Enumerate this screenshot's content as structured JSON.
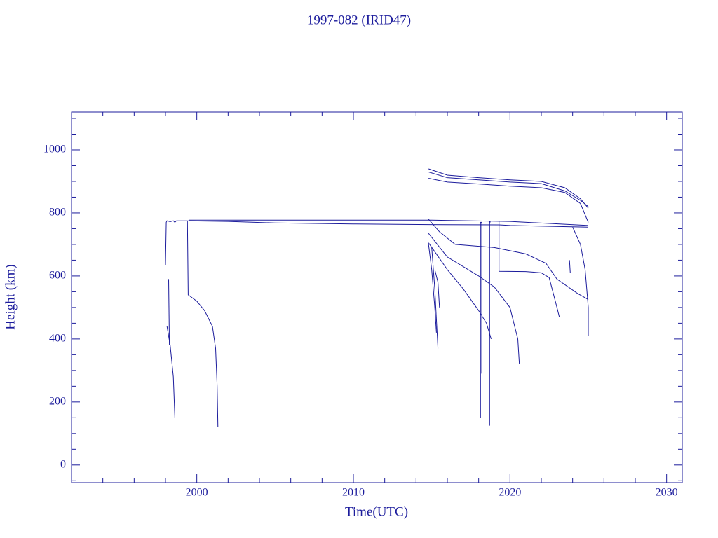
{
  "chart_data": {
    "type": "line",
    "title": "1997-082 (IRID47)",
    "x_label": "Time(UTC)",
    "y_label": "Height (km)",
    "xlim": [
      1992,
      2031
    ],
    "ylim": [
      -56,
      1120
    ],
    "xticks": [
      2000,
      2010,
      2020,
      2030
    ],
    "yticks": [
      0,
      200,
      400,
      600,
      800,
      1000
    ],
    "xminorticks": [
      1994,
      1996,
      1998,
      2002,
      2004,
      2006,
      2008,
      2012,
      2014,
      2016,
      2018,
      2022,
      2024,
      2026,
      2028
    ],
    "yminorticks": [
      -50,
      50,
      100,
      150,
      250,
      300,
      350,
      450,
      500,
      550,
      650,
      700,
      750,
      850,
      900,
      950,
      1050,
      1100
    ],
    "color": "#1c1c9c",
    "series": [
      {
        "x": [
          1998.0,
          1998.05,
          1998.1,
          1998.3,
          1998.5,
          1998.6,
          1998.7,
          1999.0,
          1999.3,
          2002,
          2005,
          2010,
          2014.8,
          2019.3,
          2020,
          2025
        ],
        "values": [
          634,
          770,
          775,
          772,
          775,
          770,
          775,
          775,
          775,
          773,
          768,
          765,
          763,
          762,
          760,
          755
        ]
      },
      {
        "x": [
          1999.5,
          2005,
          2015,
          2020,
          2025
        ],
        "values": [
          777,
          777,
          777,
          773,
          760
        ]
      },
      {
        "x": [
          1999.4,
          1999.45,
          2000,
          2000.5,
          2001,
          2001.2,
          2001.3,
          2001.35
        ],
        "values": [
          775,
          540,
          520,
          490,
          440,
          370,
          250,
          120
        ]
      },
      {
        "x": [
          1998.1,
          1998.3,
          1998.5,
          1998.6
        ],
        "values": [
          440,
          380,
          280,
          150
        ]
      },
      {
        "x": [
          1998.2,
          1998.25
        ],
        "values": [
          590,
          380
        ]
      },
      {
        "x": [
          2018.12,
          2018.12,
          2018.2,
          2018.2
        ],
        "values": [
          150,
          770,
          770,
          290
        ]
      },
      {
        "x": [
          2018.7,
          2018.7,
          2018.75
        ],
        "values": [
          125,
          775,
          770
        ]
      },
      {
        "x": [
          2019.3,
          2019.3,
          2021,
          2022,
          2022.5,
          2023.0,
          2023.15
        ],
        "values": [
          775,
          615,
          614,
          610,
          595,
          500,
          470
        ]
      },
      {
        "x": [
          2014.8,
          2016,
          2018,
          2020,
          2022,
          2023.5,
          2024.5,
          2025
        ],
        "values": [
          940,
          920,
          912,
          905,
          900,
          880,
          845,
          815
        ]
      },
      {
        "x": [
          2014.8,
          2016,
          2018,
          2020,
          2022,
          2023.5,
          2024.5,
          2025
        ],
        "values": [
          930,
          912,
          905,
          898,
          893,
          870,
          840,
          820
        ]
      },
      {
        "x": [
          2014.8,
          2016,
          2018,
          2020,
          2022,
          2023.5,
          2024.5,
          2025
        ],
        "values": [
          910,
          898,
          892,
          885,
          880,
          865,
          830,
          770
        ]
      },
      {
        "x": [
          2014.8,
          2015.5,
          2016.5,
          2019,
          2021,
          2022.3,
          2023.0,
          2024.3,
          2025
        ],
        "values": [
          780,
          740,
          700,
          690,
          670,
          640,
          590,
          545,
          525
        ]
      },
      {
        "x": [
          2014.8,
          2016,
          2018,
          2019,
          2020,
          2020.5,
          2020.6
        ],
        "values": [
          735,
          660,
          600,
          565,
          500,
          400,
          320
        ]
      },
      {
        "x": [
          2014.8,
          2016,
          2017,
          2018,
          2018.5,
          2018.8
        ],
        "values": [
          705,
          620,
          560,
          490,
          450,
          400
        ]
      },
      {
        "x": [
          2014.8,
          2015.0,
          2015.2,
          2015.3
        ],
        "values": [
          700,
          620,
          500,
          420
        ]
      },
      {
        "x": [
          2015.0,
          2015.2,
          2015.4
        ],
        "values": [
          690,
          560,
          370
        ]
      },
      {
        "x": [
          2015.2,
          2015.4,
          2015.5
        ],
        "values": [
          620,
          580,
          500
        ]
      },
      {
        "x": [
          2024.0,
          2024.5,
          2024.8,
          2025.0,
          2025.0
        ],
        "values": [
          755,
          700,
          620,
          500,
          410
        ]
      },
      {
        "x": [
          2023.8,
          2023.85
        ],
        "values": [
          650,
          610
        ]
      }
    ]
  }
}
